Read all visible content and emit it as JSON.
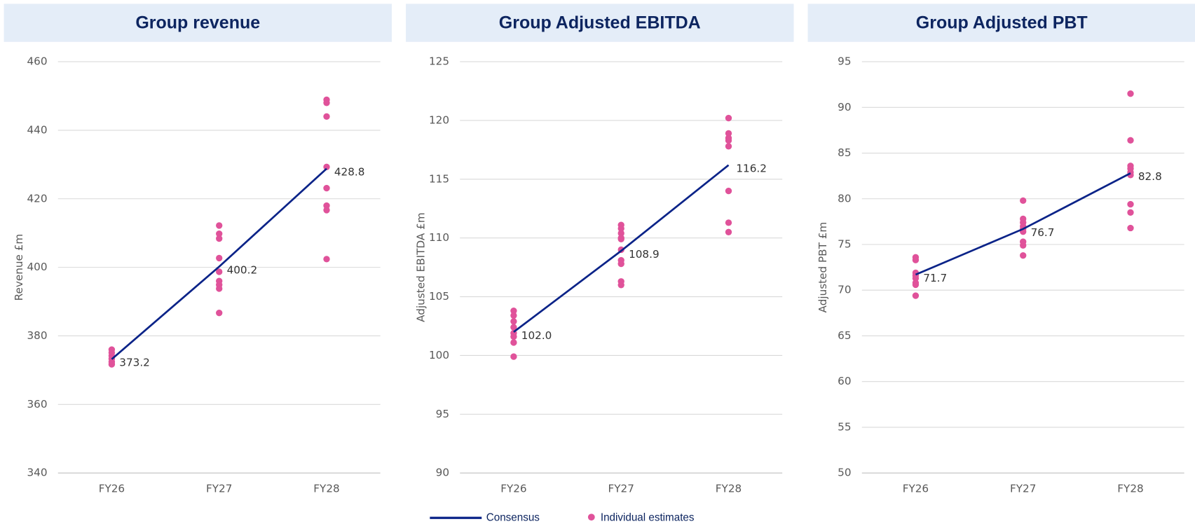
{
  "chart_data": [
    {
      "type": "line",
      "title": "Group revenue",
      "y_label": "Revenue £m",
      "categories": [
        "FY26",
        "FY27",
        "FY28"
      ],
      "ylim": [
        340,
        460
      ],
      "yticks": [
        340,
        360,
        380,
        400,
        420,
        440,
        460
      ],
      "grid": true,
      "series": [
        {
          "name": "Consensus",
          "color": "#0a2388",
          "values": [
            373.2,
            400.2,
            428.8
          ]
        },
        {
          "name": "Individual estimates",
          "color": "#e0529a",
          "values": [
            [
              376.0,
              375.1,
              374.2,
              373.3,
              372.4,
              371.7
            ],
            [
              412.2,
              409.8,
              408.4,
              402.7,
              398.7,
              396.0,
              394.9,
              393.8,
              386.7
            ],
            [
              448.9,
              448.0,
              444.0,
              429.3,
              423.1,
              418.0,
              416.7,
              402.4
            ]
          ]
        }
      ]
    },
    {
      "type": "line",
      "title": "Group Adjusted EBITDA",
      "y_label": "Adjusted EBITDA £m",
      "categories": [
        "FY26",
        "FY27",
        "FY28"
      ],
      "ylim": [
        90,
        125
      ],
      "yticks": [
        90,
        95,
        100,
        105,
        110,
        115,
        120,
        125
      ],
      "grid": true,
      "series": [
        {
          "color": "#0a2388",
          "values": [
            102.0,
            108.9,
            116.2
          ],
          "value_labels": [
            "102.0",
            "108.9",
            "116.2"
          ]
        },
        {
          "color": "#e0529a",
          "values": [
            [
              103.8,
              103.4,
              102.9,
              102.4,
              101.9,
              101.6,
              101.1,
              99.9
            ],
            [
              111.1,
              110.8,
              110.4,
              110.0,
              109.9,
              109.0,
              108.1,
              107.8,
              106.3,
              106.0
            ],
            [
              120.2,
              118.9,
              118.5,
              118.3,
              117.8,
              114.0,
              111.3,
              110.5
            ]
          ]
        }
      ]
    },
    {
      "type": "line",
      "title": "Group Adjusted PBT",
      "y_label": "Adjusted PBT £m",
      "categories": [
        "FY26",
        "FY27",
        "FY28"
      ],
      "ylim": [
        50,
        95
      ],
      "yticks": [
        50,
        55,
        60,
        65,
        70,
        75,
        80,
        85,
        90,
        95
      ],
      "grid": true,
      "series": [
        {
          "color": "#0a2388",
          "values": [
            71.7,
            76.7,
            82.8
          ]
        },
        {
          "color": "#e0529a",
          "values": [
            [
              73.6,
              73.3,
              71.9,
              71.6,
              71.3,
              70.8,
              70.6,
              69.4
            ],
            [
              79.8,
              77.8,
              77.4,
              77.0,
              76.7,
              76.4,
              75.3,
              74.9,
              73.8
            ],
            [
              91.5,
              86.4,
              83.6,
              83.3,
              82.9,
              82.6,
              79.4,
              78.5,
              76.8
            ]
          ]
        }
      ]
    }
  ]
}
